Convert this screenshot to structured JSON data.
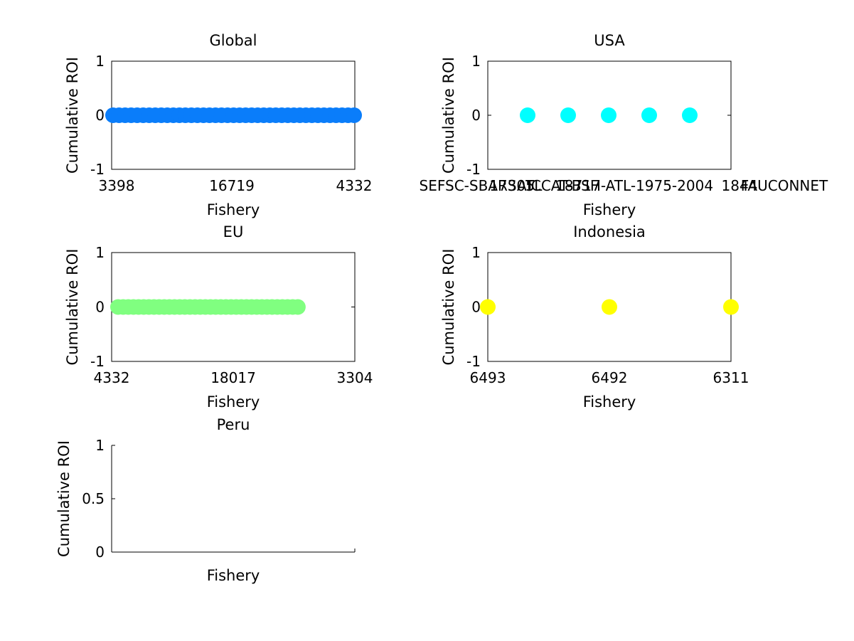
{
  "chart_data": [
    {
      "type": "scatter",
      "title": "Global",
      "xlabel": "Fishery",
      "ylabel": "Cumulative ROI",
      "xtick_labels": [
        "3398",
        "16719",
        "4332"
      ],
      "yticks": [
        -1,
        0,
        1
      ],
      "ylim": [
        -1,
        1
      ],
      "xlim": [
        0,
        1
      ],
      "grid": false,
      "legend": "none",
      "marker_color": "#0a7dfa",
      "series": [
        {
          "x": [
            0.0,
            0.025,
            0.05,
            0.075,
            0.1,
            0.125,
            0.15,
            0.175,
            0.2,
            0.225,
            0.25,
            0.275,
            0.3,
            0.325,
            0.35,
            0.375,
            0.4,
            0.425,
            0.45,
            0.475,
            0.5,
            0.525,
            0.55,
            0.575,
            0.6,
            0.625,
            0.65,
            0.675,
            0.7,
            0.725,
            0.75,
            0.775,
            0.8,
            0.825,
            0.85,
            0.875,
            0.9,
            0.925,
            0.95,
            0.975,
            1.0
          ],
          "y": [
            0,
            0,
            0,
            0,
            0,
            0,
            0,
            0,
            0,
            0,
            0,
            0,
            0,
            0,
            0,
            0,
            0,
            0,
            0,
            0,
            0,
            0,
            0,
            0,
            0,
            0,
            0,
            0,
            0,
            0,
            0,
            0,
            0,
            0,
            0,
            0,
            0,
            0,
            0,
            0,
            0
          ]
        }
      ]
    },
    {
      "type": "scatter",
      "title": "USA",
      "xlabel": "Fishery",
      "ylabel": "Cumulative ROI",
      "xtick_labels": [
        "SEFSC-SBARSATL",
        "17305",
        "18717",
        "ICCAT-BSH-ATL-1975-2004",
        "1844",
        "FAUCONNET"
      ],
      "yticks": [
        -1,
        0,
        1
      ],
      "ylim": [
        -1,
        1
      ],
      "xlim": [
        0,
        6
      ],
      "grid": false,
      "legend": "none",
      "marker_color": "#00ffff",
      "series": [
        {
          "x": [
            1,
            2,
            3,
            4,
            5
          ],
          "y": [
            0,
            0,
            0,
            0,
            0
          ]
        }
      ]
    },
    {
      "type": "scatter",
      "title": "EU",
      "xlabel": "Fishery",
      "ylabel": "Cumulative ROI",
      "xtick_labels": [
        "4332",
        "18017",
        "3304"
      ],
      "yticks": [
        -1,
        0,
        1
      ],
      "ylim": [
        -1,
        1
      ],
      "xlim": [
        0,
        1
      ],
      "grid": false,
      "legend": "none",
      "marker_color": "#80ff80",
      "series": [
        {
          "x": [
            0.0,
            0.025,
            0.05,
            0.075,
            0.1,
            0.125,
            0.15,
            0.175,
            0.2,
            0.225,
            0.25,
            0.275,
            0.3,
            0.325,
            0.35,
            0.375,
            0.4,
            0.425,
            0.45,
            0.475,
            0.5,
            0.525,
            0.55,
            0.575,
            0.6,
            0.625,
            0.65,
            0.675,
            0.7,
            0.725,
            0.75,
            0.775,
            0.8,
            0.825,
            0.85,
            0.875
          ],
          "y": [
            0,
            0,
            0,
            0,
            0,
            0,
            0,
            0,
            0,
            0,
            0,
            0,
            0,
            0,
            0,
            0,
            0,
            0,
            0,
            0,
            0,
            0,
            0,
            0,
            0,
            0,
            0,
            0,
            0,
            0,
            0,
            0,
            0,
            0,
            0,
            0
          ]
        }
      ]
    },
    {
      "type": "scatter",
      "title": "Indonesia",
      "xlabel": "Fishery",
      "ylabel": "Cumulative ROI",
      "xtick_labels": [
        "6493",
        "6492",
        "6311"
      ],
      "yticks": [
        -1,
        0,
        1
      ],
      "ylim": [
        -1,
        1
      ],
      "xlim": [
        1,
        3
      ],
      "grid": false,
      "legend": "none",
      "marker_color": "#ffff00",
      "series": [
        {
          "x": [
            1,
            2,
            3
          ],
          "y": [
            0,
            0,
            0
          ]
        }
      ]
    },
    {
      "type": "scatter",
      "title": "Peru",
      "xlabel": "Fishery",
      "ylabel": "Cumulative ROI",
      "xtick_labels": [],
      "yticks": [
        0,
        0.5,
        1
      ],
      "ylim": [
        0,
        1
      ],
      "xlim": [
        0,
        1
      ],
      "grid": false,
      "legend": "none",
      "marker_color": "#000000",
      "series": []
    }
  ]
}
